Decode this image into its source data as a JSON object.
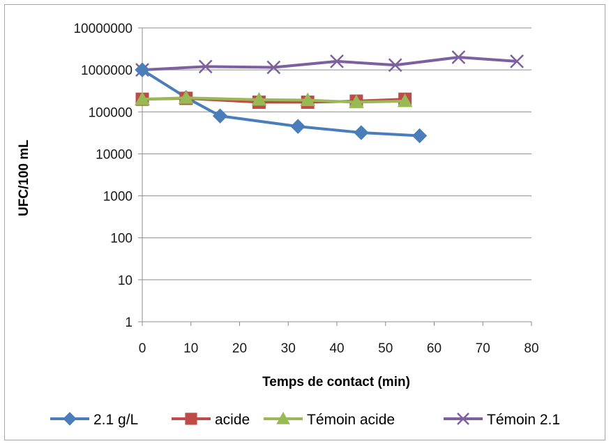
{
  "chart_data": {
    "type": "line",
    "y_scale": "log",
    "xlabel": "Temps de contact (min)",
    "ylabel": "UFC/100 mL",
    "xlim": [
      0,
      80
    ],
    "ylim": [
      1,
      10000000
    ],
    "x_ticks": [
      0,
      10,
      20,
      30,
      40,
      50,
      60,
      70,
      80
    ],
    "x_tick_labels": [
      "0",
      "10",
      "20",
      "30",
      "40",
      "50",
      "60",
      "70",
      "80"
    ],
    "y_ticks": [
      1,
      10,
      100,
      1000,
      10000,
      100000,
      1000000,
      10000000
    ],
    "y_tick_labels": [
      "1",
      "10",
      "100",
      "1000",
      "10000",
      "100000",
      "1000000",
      "10000000"
    ],
    "grid": true,
    "legend_position": "bottom",
    "series": [
      {
        "name": "2.1 g/L",
        "color": "#4a7ebb",
        "marker": "diamond",
        "x": [
          0,
          9,
          16,
          32,
          45,
          57
        ],
        "y": [
          1000000,
          220000,
          80000,
          45000,
          32000,
          27000
        ]
      },
      {
        "name": "acide",
        "color": "#be4b48",
        "marker": "square",
        "x": [
          0,
          9,
          24,
          34,
          44,
          54
        ],
        "y": [
          200000,
          210000,
          170000,
          170000,
          180000,
          200000
        ]
      },
      {
        "name": "Témoin acide",
        "color": "#98b954",
        "marker": "triangle",
        "x": [
          0,
          9,
          24,
          34,
          44,
          54
        ],
        "y": [
          200000,
          215000,
          195000,
          190000,
          170000,
          180000
        ]
      },
      {
        "name": "Témoin 2.1",
        "color": "#7d60a0",
        "marker": "x",
        "x": [
          0,
          13,
          27,
          40,
          52,
          65,
          77
        ],
        "y": [
          1000000,
          1200000,
          1150000,
          1600000,
          1300000,
          2000000,
          1600000
        ]
      }
    ]
  }
}
